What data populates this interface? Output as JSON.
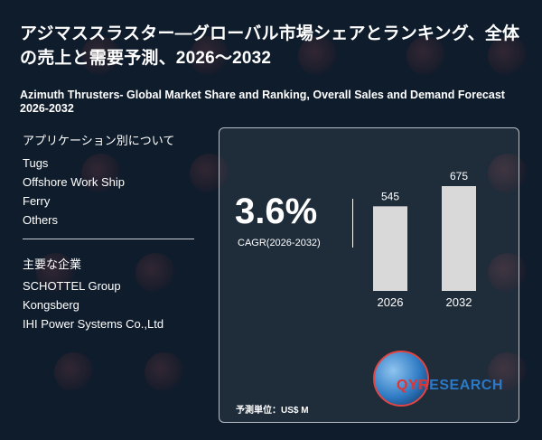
{
  "title_jp": "アジマススラスター―グローバル市場シェアとランキング、全体の売上と需要予測、2026～2032",
  "title_en": "Azimuth Thrusters- Global Market Share and Ranking, Overall Sales and Demand Forecast 2026-2032",
  "applications": {
    "heading": "アプリケーション別について",
    "items": [
      "Tugs",
      "Offshore Work Ship",
      "Ferry",
      "Others"
    ]
  },
  "companies": {
    "heading": "主要な企業",
    "items": [
      "SCHOTTEL Group",
      "Kongsberg",
      "IHI Power Systems Co.,Ltd"
    ]
  },
  "cagr": {
    "value": "3.6%",
    "label": "CAGR(2026-2032)"
  },
  "logo": {
    "qyr": "QYR",
    "research": "ESEARCH"
  },
  "unit_label": "予測単位：US$ M",
  "colors": {
    "background": "#0f1c2c",
    "bar": "#d9d9d9",
    "logo_red": "#e03434",
    "logo_blue": "#2c79c8"
  },
  "chart_data": {
    "type": "bar",
    "categories": [
      "2026",
      "2032"
    ],
    "values": [
      545,
      675
    ],
    "title": "",
    "xlabel": "",
    "ylabel": "",
    "ylim": [
      0,
      675
    ]
  }
}
